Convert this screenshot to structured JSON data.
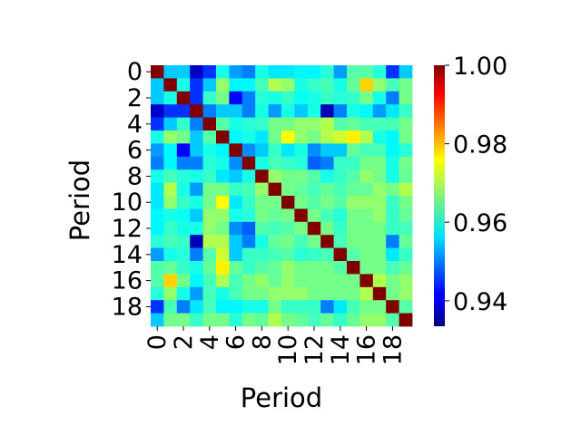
{
  "chart_data": {
    "type": "heatmap",
    "title": "",
    "xlabel": "Period",
    "ylabel": "Period",
    "x_ticks": [
      "0",
      "2",
      "4",
      "6",
      "8",
      "10",
      "12",
      "14",
      "16",
      "18"
    ],
    "y_ticks": [
      "0",
      "2",
      "4",
      "6",
      "8",
      "10",
      "12",
      "14",
      "16",
      "18"
    ],
    "colorbar": {
      "min": 0.9335,
      "max": 1.0,
      "ticks": [
        "0.94",
        "0.96",
        "0.98",
        "1.00"
      ],
      "tick_values": [
        0.94,
        0.96,
        0.98,
        1.0
      ],
      "colormap": "jet"
    },
    "matrix": [
      [
        1.0,
        0.955,
        0.955,
        0.938,
        0.945,
        0.96,
        0.952,
        0.95,
        0.96,
        0.957,
        0.957,
        0.958,
        0.958,
        0.961,
        0.952,
        0.964,
        0.964,
        0.961,
        0.945,
        0.955
      ],
      [
        0.955,
        1.0,
        0.96,
        0.945,
        0.955,
        0.968,
        0.958,
        0.958,
        0.963,
        0.97,
        0.968,
        0.96,
        0.962,
        0.963,
        0.96,
        0.965,
        0.978,
        0.968,
        0.963,
        0.966
      ],
      [
        0.955,
        0.96,
        1.0,
        0.945,
        0.962,
        0.966,
        0.942,
        0.95,
        0.961,
        0.96,
        0.962,
        0.959,
        0.96,
        0.962,
        0.961,
        0.962,
        0.966,
        0.96,
        0.95,
        0.966
      ],
      [
        0.938,
        0.945,
        0.945,
        1.0,
        0.95,
        0.955,
        0.955,
        0.95,
        0.96,
        0.952,
        0.96,
        0.955,
        0.96,
        0.937,
        0.95,
        0.96,
        0.958,
        0.952,
        0.957,
        0.962
      ],
      [
        0.945,
        0.955,
        0.962,
        0.95,
        1.0,
        0.964,
        0.96,
        0.961,
        0.962,
        0.966,
        0.966,
        0.968,
        0.968,
        0.97,
        0.964,
        0.965,
        0.963,
        0.963,
        0.963,
        0.966
      ],
      [
        0.96,
        0.968,
        0.966,
        0.955,
        0.964,
        1.0,
        0.958,
        0.96,
        0.957,
        0.966,
        0.975,
        0.968,
        0.966,
        0.97,
        0.972,
        0.976,
        0.97,
        0.96,
        0.958,
        0.966
      ],
      [
        0.952,
        0.958,
        0.942,
        0.955,
        0.96,
        0.958,
        1.0,
        0.951,
        0.955,
        0.962,
        0.957,
        0.96,
        0.951,
        0.955,
        0.955,
        0.965,
        0.963,
        0.963,
        0.958,
        0.961
      ],
      [
        0.95,
        0.958,
        0.95,
        0.95,
        0.961,
        0.96,
        0.951,
        1.0,
        0.96,
        0.963,
        0.962,
        0.961,
        0.948,
        0.95,
        0.962,
        0.962,
        0.966,
        0.966,
        0.96,
        0.966
      ],
      [
        0.96,
        0.963,
        0.961,
        0.96,
        0.962,
        0.957,
        0.955,
        0.96,
        1.0,
        0.968,
        0.966,
        0.966,
        0.964,
        0.96,
        0.962,
        0.964,
        0.968,
        0.966,
        0.96,
        0.965
      ],
      [
        0.957,
        0.97,
        0.96,
        0.952,
        0.966,
        0.966,
        0.962,
        0.963,
        0.968,
        1.0,
        0.966,
        0.965,
        0.963,
        0.965,
        0.963,
        0.965,
        0.965,
        0.968,
        0.966,
        0.97
      ],
      [
        0.957,
        0.968,
        0.962,
        0.96,
        0.966,
        0.975,
        0.957,
        0.962,
        0.966,
        0.966,
        1.0,
        0.966,
        0.964,
        0.966,
        0.964,
        0.968,
        0.968,
        0.968,
        0.962,
        0.966
      ],
      [
        0.958,
        0.96,
        0.959,
        0.955,
        0.968,
        0.968,
        0.96,
        0.961,
        0.966,
        0.965,
        0.966,
        1.0,
        0.966,
        0.963,
        0.961,
        0.966,
        0.966,
        0.968,
        0.962,
        0.965
      ],
      [
        0.958,
        0.962,
        0.96,
        0.96,
        0.968,
        0.966,
        0.951,
        0.948,
        0.964,
        0.963,
        0.964,
        0.966,
        1.0,
        0.966,
        0.962,
        0.966,
        0.966,
        0.966,
        0.962,
        0.963
      ],
      [
        0.961,
        0.963,
        0.962,
        0.937,
        0.97,
        0.97,
        0.955,
        0.95,
        0.96,
        0.965,
        0.966,
        0.963,
        0.966,
        1.0,
        0.963,
        0.966,
        0.966,
        0.966,
        0.95,
        0.965
      ],
      [
        0.952,
        0.96,
        0.961,
        0.95,
        0.964,
        0.972,
        0.955,
        0.962,
        0.962,
        0.963,
        0.964,
        0.961,
        0.962,
        0.963,
        1.0,
        0.964,
        0.966,
        0.966,
        0.957,
        0.962
      ],
      [
        0.964,
        0.965,
        0.962,
        0.96,
        0.965,
        0.976,
        0.965,
        0.962,
        0.964,
        0.965,
        0.968,
        0.966,
        0.966,
        0.966,
        0.964,
        1.0,
        0.966,
        0.966,
        0.963,
        0.965
      ],
      [
        0.964,
        0.978,
        0.966,
        0.958,
        0.963,
        0.97,
        0.963,
        0.966,
        0.968,
        0.965,
        0.968,
        0.966,
        0.966,
        0.966,
        0.966,
        0.966,
        1.0,
        0.97,
        0.966,
        0.968
      ],
      [
        0.961,
        0.968,
        0.96,
        0.952,
        0.963,
        0.96,
        0.963,
        0.966,
        0.966,
        0.968,
        0.968,
        0.968,
        0.966,
        0.966,
        0.966,
        0.966,
        0.97,
        1.0,
        0.966,
        0.968
      ],
      [
        0.945,
        0.963,
        0.95,
        0.957,
        0.963,
        0.958,
        0.958,
        0.96,
        0.96,
        0.966,
        0.962,
        0.962,
        0.962,
        0.95,
        0.957,
        0.963,
        0.966,
        0.966,
        1.0,
        0.964
      ],
      [
        0.955,
        0.966,
        0.966,
        0.962,
        0.966,
        0.966,
        0.961,
        0.966,
        0.965,
        0.97,
        0.966,
        0.965,
        0.963,
        0.965,
        0.962,
        0.965,
        0.968,
        0.968,
        0.964,
        1.0
      ]
    ]
  }
}
